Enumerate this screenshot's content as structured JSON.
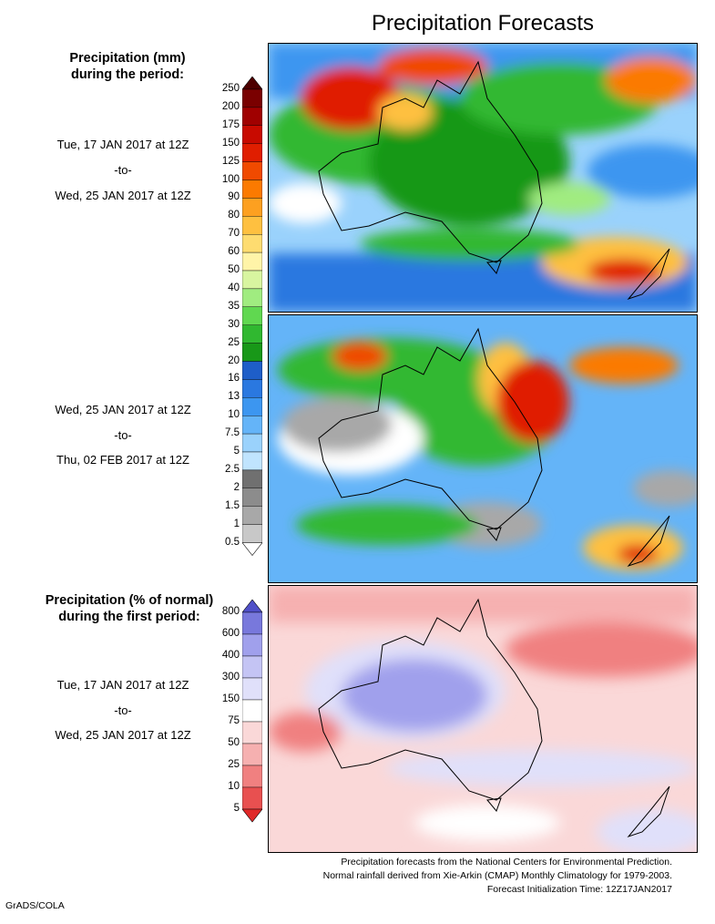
{
  "title": "Precipitation Forecasts",
  "precip_legend": {
    "heading_line1": "Precipitation (mm)",
    "heading_line2": "during the period:",
    "period1": {
      "start": "Tue, 17 JAN 2017 at 12Z",
      "sep": "-to-",
      "end": "Wed, 25 JAN 2017 at 12Z"
    },
    "period2": {
      "start": "Wed, 25 JAN 2017 at 12Z",
      "sep": "-to-",
      "end": "Thu, 02 FEB 2017 at 12Z"
    },
    "levels": [
      "250",
      "200",
      "175",
      "150",
      "125",
      "100",
      "90",
      "80",
      "70",
      "60",
      "50",
      "40",
      "35",
      "30",
      "25",
      "20",
      "16",
      "13",
      "10",
      "7.5",
      "5",
      "2.5",
      "2",
      "1.5",
      "1",
      "0.5"
    ],
    "colors": [
      "#4d0000",
      "#7a0000",
      "#a00000",
      "#c80a00",
      "#e01e00",
      "#f04a00",
      "#fb7a00",
      "#fda020",
      "#fec040",
      "#fedc70",
      "#fff4a8",
      "#d8f5a0",
      "#a0ec80",
      "#60d850",
      "#30b830",
      "#189818",
      "#1e5ec8",
      "#2a78e0",
      "#3c96f0",
      "#64b4f8",
      "#9ad2fc",
      "#c0e4fe",
      "#707070",
      "#8c8c8c",
      "#a8a8a8",
      "#c8c8c8",
      "#ffffff"
    ]
  },
  "normal_legend": {
    "heading_line1": "Precipitation (% of normal)",
    "heading_line2": "during the first period:",
    "period": {
      "start": "Tue, 17 JAN 2017 at 12Z",
      "sep": "-to-",
      "end": "Wed, 25 JAN 2017 at 12Z"
    },
    "levels": [
      "800",
      "600",
      "400",
      "300",
      "150",
      "75",
      "50",
      "25",
      "10",
      "5"
    ],
    "colors": [
      "#5050c8",
      "#7878dc",
      "#a0a0ec",
      "#c4c4f4",
      "#e0e0fa",
      "#ffffff",
      "#fad8d8",
      "#f6b0b0",
      "#f08080",
      "#e85050",
      "#e02828"
    ]
  },
  "footer": {
    "line1": "Precipitation forecasts from the National Centers for Environmental Prediction.",
    "line2": "Normal rainfall derived from Xie-Arkin (CMAP) Monthly Climatology for 1979-2003.",
    "line3": "Forecast Initialization Time: 12Z17JAN2017"
  },
  "credit": "GrADS/COLA"
}
